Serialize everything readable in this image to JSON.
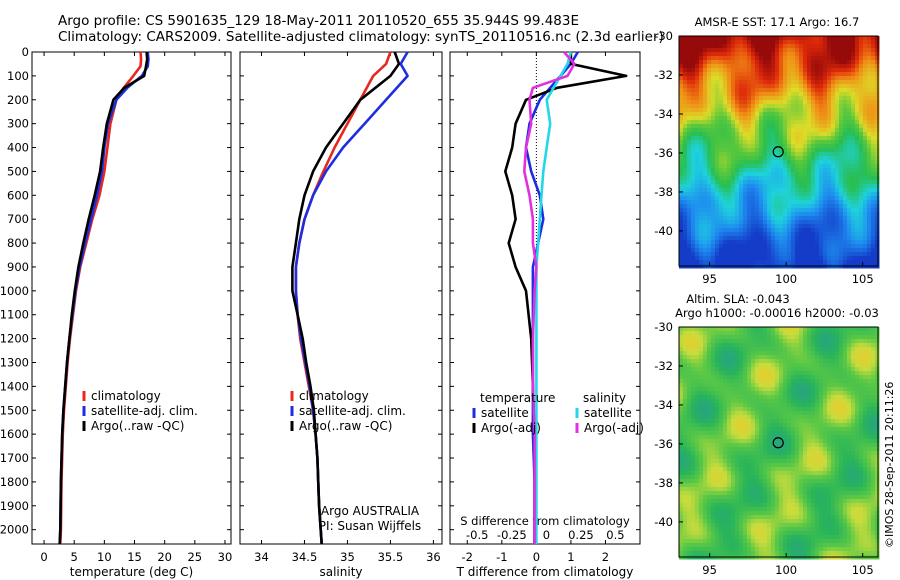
{
  "header": {
    "line1": "Argo profile: CS 5901635_129 18-May-2011 20110520_655 35.944S 99.483E",
    "line2": "Climatology: CARS2009. Satellite-adjusted climatology: synTS_20110516.nc (2.3d earlier)"
  },
  "colors": {
    "climatology": "#e8281e",
    "satellite": "#1c2ee0",
    "argo": "#000000",
    "satellite_s": "#22d8e8",
    "argo_adj_s": "#e030e0"
  },
  "depth_ticks": [
    0,
    100,
    200,
    300,
    400,
    500,
    600,
    700,
    800,
    900,
    1000,
    1100,
    1200,
    1300,
    1400,
    1500,
    1600,
    1700,
    1800,
    1900,
    2000
  ],
  "chart_data": [
    {
      "type": "line",
      "name": "temperature-profile",
      "xlabel": "temperature (deg C)",
      "xlim": [
        -2,
        31
      ],
      "ylim": [
        2060,
        0
      ],
      "xticks": [
        0,
        5,
        10,
        15,
        20,
        25,
        30
      ],
      "legend": [
        "climatology",
        "satellite-adj. clim.",
        "Argo(..raw -QC)"
      ],
      "series": [
        {
          "name": "climatology",
          "color": "#e8281e",
          "x": [
            16.0,
            16.1,
            16.0,
            14.8,
            13.2,
            12.0,
            11.0,
            10.5,
            10.0,
            9.2,
            8.0,
            7.0,
            6.0,
            5.3,
            4.8,
            4.3,
            3.9,
            3.6,
            3.3,
            3.1,
            2.9,
            2.8,
            2.7
          ],
          "y": [
            0,
            30,
            60,
            100,
            150,
            200,
            300,
            400,
            500,
            600,
            700,
            800,
            900,
            1000,
            1100,
            1200,
            1300,
            1400,
            1500,
            1600,
            1800,
            2000,
            2060
          ]
        },
        {
          "name": "satellite-adj. clim.",
          "color": "#1c2ee0",
          "x": [
            17.2,
            17.3,
            17.2,
            16.2,
            13.8,
            12.0,
            10.6,
            10.0,
            9.6,
            8.8,
            7.8,
            6.8,
            5.9,
            5.2,
            4.7,
            4.2,
            3.8,
            3.5,
            3.2,
            3.0,
            2.8,
            2.7,
            2.6
          ],
          "y": [
            0,
            30,
            60,
            100,
            150,
            200,
            300,
            400,
            500,
            600,
            700,
            800,
            900,
            1000,
            1100,
            1200,
            1300,
            1400,
            1500,
            1600,
            1800,
            2000,
            2060
          ]
        },
        {
          "name": "Argo(..raw -QC)",
          "color": "#000000",
          "x": [
            17.0,
            17.1,
            16.9,
            16.6,
            13.3,
            11.5,
            10.4,
            9.8,
            9.3,
            8.4,
            7.4,
            6.5,
            5.7,
            5.1,
            4.6,
            4.2,
            3.8,
            3.5,
            3.2,
            3.0,
            2.8,
            2.7,
            2.6
          ],
          "y": [
            0,
            30,
            60,
            100,
            150,
            200,
            300,
            400,
            500,
            600,
            700,
            800,
            900,
            1000,
            1100,
            1200,
            1300,
            1400,
            1500,
            1600,
            1800,
            2000,
            2060
          ]
        }
      ]
    },
    {
      "type": "line",
      "name": "salinity-profile",
      "xlabel": "salinity",
      "xlim": [
        33.75,
        36.1
      ],
      "ylim": [
        2060,
        0
      ],
      "xticks": [
        34,
        34.5,
        35,
        35.5,
        36
      ],
      "legend": [
        "climatology",
        "satellite-adj. clim.",
        "Argo(..raw -QC)"
      ],
      "annotation": [
        "Argo AUSTRALIA",
        "PI: Susan Wijffels"
      ],
      "series": [
        {
          "name": "climatology",
          "color": "#e8281e",
          "x": [
            35.5,
            35.45,
            35.3,
            35.15,
            35.0,
            34.85,
            34.72,
            34.6,
            34.5,
            34.44,
            34.4,
            34.4,
            34.42,
            34.45,
            34.5,
            34.55,
            34.6,
            34.63,
            34.65,
            34.67,
            34.7
          ],
          "y": [
            0,
            50,
            100,
            200,
            300,
            400,
            500,
            600,
            700,
            800,
            900,
            1000,
            1100,
            1200,
            1300,
            1400,
            1500,
            1600,
            1700,
            1900,
            2060
          ]
        },
        {
          "name": "satellite-adj. clim.",
          "color": "#1c2ee0",
          "x": [
            35.7,
            35.62,
            35.7,
            35.45,
            35.2,
            34.95,
            34.75,
            34.6,
            34.5,
            34.44,
            34.4,
            34.4,
            34.42,
            34.46,
            34.51,
            34.56,
            34.6,
            34.63,
            34.65,
            34.67,
            34.7
          ],
          "y": [
            0,
            50,
            100,
            200,
            300,
            400,
            500,
            600,
            700,
            800,
            900,
            1000,
            1100,
            1200,
            1300,
            1400,
            1500,
            1600,
            1700,
            1900,
            2060
          ]
        },
        {
          "name": "Argo(..raw -QC)",
          "color": "#000000",
          "x": [
            35.55,
            35.6,
            35.5,
            35.15,
            34.95,
            34.75,
            34.6,
            34.5,
            34.44,
            34.4,
            34.36,
            34.36,
            34.42,
            34.48,
            34.52,
            34.57,
            34.61,
            34.63,
            34.65,
            34.67,
            34.7
          ],
          "y": [
            0,
            50,
            100,
            200,
            300,
            400,
            500,
            600,
            700,
            800,
            900,
            1000,
            1100,
            1200,
            1300,
            1400,
            1500,
            1600,
            1700,
            1900,
            2060
          ]
        }
      ]
    },
    {
      "type": "line",
      "name": "difference-profile",
      "xlabel": "T difference from climatology",
      "xlabel_top": "S difference from climatology",
      "xlim": [
        -2.5,
        3.0
      ],
      "ylim": [
        2060,
        0
      ],
      "xticks": [
        -2,
        -1,
        0,
        1,
        2
      ],
      "xticks_top_labels": [
        "-0.5",
        "-0.25",
        "0",
        "0.25",
        "0.5"
      ],
      "xticks_top_pos": [
        -2,
        -1,
        0,
        1,
        2
      ],
      "legend_groups": {
        "temperature": [
          "satellite",
          "Argo(-adj)"
        ],
        "salinity": [
          "satellite",
          "Argo(-adj)"
        ]
      },
      "series": [
        {
          "name": "temperature satellite",
          "color": "#1c2ee0",
          "x": [
            1.2,
            1.0,
            0.7,
            0.4,
            0.1,
            -0.2,
            -0.3,
            -0.15,
            0.1,
            0.2,
            0.05,
            -0.1,
            -0.1,
            -0.1,
            -0.1,
            -0.1,
            -0.05,
            -0.05
          ],
          "y": [
            0,
            50,
            100,
            150,
            200,
            300,
            400,
            500,
            600,
            700,
            800,
            900,
            1000,
            1200,
            1400,
            1600,
            1800,
            2060
          ]
        },
        {
          "name": "temperature Argo(-adj)",
          "color": "#000000",
          "x": [
            1.0,
            1.0,
            2.6,
            0.6,
            -0.3,
            -0.6,
            -0.7,
            -0.9,
            -0.7,
            -0.6,
            -0.8,
            -0.6,
            -0.3,
            -0.15,
            -0.1,
            -0.05,
            -0.05,
            -0.05
          ],
          "y": [
            0,
            50,
            100,
            150,
            200,
            300,
            400,
            500,
            600,
            700,
            800,
            900,
            1000,
            1200,
            1400,
            1600,
            1800,
            2060
          ]
        },
        {
          "name": "salinity satellite",
          "color": "#22d8e8",
          "x": [
            1.0,
            0.9,
            0.7,
            0.5,
            0.3,
            0.4,
            0.3,
            0.2,
            0.15,
            0.1,
            0.05,
            0.0,
            0.0,
            0.0,
            0.0,
            0.0,
            0.0,
            0.0
          ],
          "y": [
            0,
            50,
            100,
            150,
            200,
            300,
            400,
            500,
            600,
            700,
            800,
            900,
            1000,
            1200,
            1400,
            1600,
            1800,
            2060
          ]
        },
        {
          "name": "salinity Argo(-adj)",
          "color": "#e030e0",
          "x": [
            0.8,
            1.1,
            0.9,
            -0.1,
            -0.2,
            -0.15,
            -0.3,
            -0.35,
            -0.2,
            -0.1,
            -0.1,
            0.0,
            -0.05,
            -0.1,
            -0.1,
            -0.05,
            -0.05,
            -0.05
          ],
          "y": [
            0,
            50,
            100,
            150,
            200,
            300,
            400,
            500,
            600,
            700,
            800,
            900,
            1000,
            1200,
            1400,
            1600,
            1800,
            2060
          ]
        }
      ]
    },
    {
      "type": "heatmap",
      "name": "sst-map",
      "title": "AMSR-E SST: 17.1  Argo: 16.7",
      "xlim": [
        93,
        106
      ],
      "ylim": [
        -41.8,
        -30
      ],
      "xticks": [
        95,
        100,
        105
      ],
      "yticks": [
        -30,
        -32,
        -34,
        -36,
        -38,
        -40
      ],
      "marker": {
        "lon": 99.48,
        "lat": -35.94
      }
    },
    {
      "type": "heatmap",
      "name": "sla-map",
      "title_line1": "Altim. SLA: -0.043",
      "title_line2": "Argo h1000: -0.00016 h2000: -0.03",
      "xlim": [
        93,
        106
      ],
      "ylim": [
        -41.8,
        -30
      ],
      "xticks": [
        95,
        100,
        105
      ],
      "yticks": [
        -30,
        -32,
        -34,
        -36,
        -38,
        -40
      ],
      "marker": {
        "lon": 99.48,
        "lat": -35.94
      }
    }
  ],
  "watermark": "©IMOS 28-Sep-2011 20:11:26"
}
